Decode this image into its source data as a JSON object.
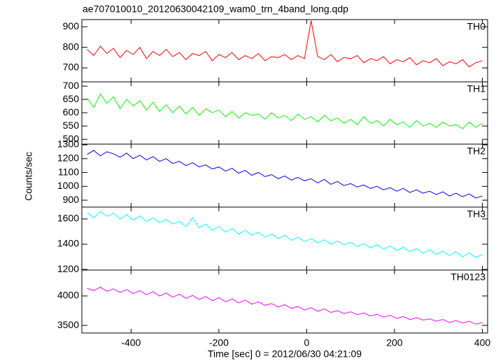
{
  "chart_data": {
    "type": "line",
    "title": "ae707010010_20120630042109_wam0_trn_4band_long.qdp",
    "xlabel": "Time [sec] 0 = 2012/06/30 04:21:09",
    "ylabel": "Counts/sec",
    "xlim": [
      -512,
      412
    ],
    "xticks": [
      -400,
      -200,
      0,
      200,
      400
    ],
    "x": [
      -500,
      -485,
      -470,
      -455,
      -440,
      -425,
      -410,
      -395,
      -380,
      -365,
      -350,
      -335,
      -320,
      -305,
      -290,
      -275,
      -260,
      -245,
      -230,
      -215,
      -200,
      -185,
      -170,
      -155,
      -140,
      -125,
      -110,
      -95,
      -80,
      -65,
      -50,
      -35,
      -20,
      -5,
      10,
      25,
      40,
      55,
      70,
      85,
      100,
      115,
      130,
      145,
      160,
      175,
      190,
      205,
      220,
      235,
      250,
      265,
      280,
      295,
      310,
      325,
      340,
      355,
      370,
      385,
      400
    ],
    "series": [
      {
        "name": "TH0",
        "color": "#ff0000",
        "ylim": [
          632,
          935
        ],
        "yticks": [
          700,
          800,
          900
        ],
        "values": [
          790,
          760,
          805,
          770,
          795,
          750,
          785,
          765,
          800,
          745,
          780,
          760,
          790,
          755,
          775,
          740,
          770,
          760,
          780,
          735,
          765,
          750,
          775,
          740,
          760,
          745,
          770,
          735,
          755,
          750,
          765,
          740,
          760,
          745,
          930,
          755,
          740,
          765,
          730,
          750,
          745,
          760,
          725,
          745,
          735,
          755,
          720,
          740,
          730,
          750,
          715,
          735,
          725,
          745,
          710,
          730,
          720,
          740,
          705,
          725,
          735
        ]
      },
      {
        "name": "TH1",
        "color": "#00ff00",
        "ylim": [
          482,
          716
        ],
        "yticks": [
          500,
          550,
          600,
          650,
          700
        ],
        "values": [
          655,
          620,
          670,
          635,
          660,
          615,
          650,
          625,
          645,
          610,
          640,
          605,
          630,
          600,
          625,
          595,
          620,
          590,
          615,
          600,
          610,
          585,
          605,
          580,
          600,
          590,
          595,
          575,
          600,
          580,
          590,
          570,
          595,
          575,
          585,
          565,
          590,
          570,
          580,
          560,
          575,
          555,
          585,
          560,
          570,
          550,
          575,
          555,
          565,
          545,
          570,
          550,
          560,
          545,
          565,
          550,
          555,
          540,
          565,
          545,
          560
        ]
      },
      {
        "name": "TH2",
        "color": "#0000ff",
        "ylim": [
          850,
          1305
        ],
        "yticks": [
          900,
          1000,
          1100,
          1200,
          1300
        ],
        "values": [
          1230,
          1260,
          1220,
          1250,
          1235,
          1210,
          1240,
          1200,
          1225,
          1190,
          1215,
          1180,
          1200,
          1165,
          1180,
          1150,
          1170,
          1140,
          1155,
          1125,
          1140,
          1110,
          1130,
          1095,
          1115,
          1080,
          1100,
          1070,
          1085,
          1055,
          1075,
          1045,
          1065,
          1040,
          1055,
          1025,
          1050,
          1015,
          1035,
          1005,
          1020,
          995,
          1010,
          985,
          1000,
          975,
          990,
          965,
          985,
          955,
          975,
          950,
          965,
          940,
          960,
          930,
          950,
          925,
          945,
          915,
          930
        ]
      },
      {
        "name": "TH3",
        "color": "#00ffff",
        "ylim": [
          1195,
          1694
        ],
        "yticks": [
          1200,
          1400,
          1600
        ],
        "values": [
          1650,
          1610,
          1660,
          1620,
          1645,
          1600,
          1635,
          1590,
          1625,
          1580,
          1610,
          1570,
          1595,
          1560,
          1580,
          1540,
          1610,
          1530,
          1560,
          1510,
          1540,
          1495,
          1525,
          1480,
          1510,
          1470,
          1495,
          1455,
          1480,
          1445,
          1470,
          1430,
          1455,
          1420,
          1445,
          1410,
          1435,
          1400,
          1425,
          1395,
          1415,
          1380,
          1405,
          1370,
          1395,
          1360,
          1385,
          1350,
          1375,
          1340,
          1365,
          1330,
          1355,
          1320,
          1345,
          1310,
          1340,
          1300,
          1330,
          1295,
          1320
        ]
      },
      {
        "name": "TH0123",
        "color": "#ff00ff",
        "ylim": [
          3370,
          4440
        ],
        "yticks": [
          3500,
          4000
        ],
        "values": [
          4130,
          4090,
          4150,
          4080,
          4120,
          4060,
          4110,
          4040,
          4090,
          4020,
          4070,
          4000,
          4050,
          3980,
          4030,
          3960,
          4010,
          3940,
          3990,
          3920,
          3970,
          3900,
          3950,
          3880,
          3930,
          3860,
          3900,
          3840,
          3870,
          3810,
          3850,
          3790,
          3820,
          3760,
          3800,
          3740,
          3780,
          3720,
          3750,
          3700,
          3730,
          3680,
          3710,
          3660,
          3690,
          3640,
          3670,
          3620,
          3650,
          3600,
          3630,
          3590,
          3610,
          3570,
          3600,
          3550,
          3580,
          3540,
          3570,
          3520,
          3550
        ]
      }
    ]
  }
}
